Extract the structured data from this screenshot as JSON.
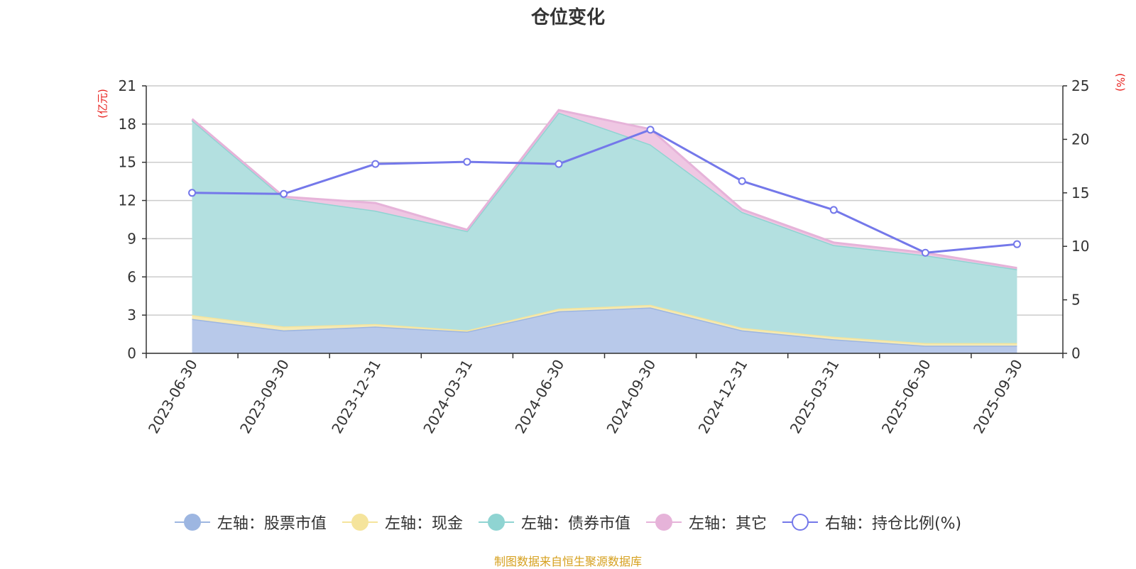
{
  "title": "仓位变化",
  "source": "制图数据来自恒生聚源数据库",
  "y_left_title": "(亿元)",
  "y_right_title": "(%)",
  "chart_data": {
    "type": "area",
    "categories": [
      "2023-06-30",
      "2023-09-30",
      "2023-12-31",
      "2024-03-31",
      "2024-06-30",
      "2024-09-30",
      "2024-12-31",
      "2025-03-31",
      "2025-06-30",
      "2025-09-30"
    ],
    "y_left": {
      "min": 0,
      "max": 21,
      "ticks": [
        0,
        3,
        6,
        9,
        12,
        15,
        18,
        21
      ]
    },
    "y_right": {
      "min": 0,
      "max": 25,
      "ticks": [
        0,
        5,
        10,
        15,
        20,
        25
      ]
    },
    "series": [
      {
        "name": "左轴：股票市值",
        "axis": "left",
        "stack": true,
        "color": "#9db6e1",
        "fill": "#b8c9ea",
        "values": [
          2.7,
          1.8,
          2.1,
          1.7,
          3.3,
          3.6,
          1.8,
          1.1,
          0.6,
          0.6
        ]
      },
      {
        "name": "左轴：现金",
        "axis": "left",
        "stack": true,
        "color": "#f5e49c",
        "fill": "#f5eab4",
        "values": [
          0.3,
          0.3,
          0.2,
          0.1,
          0.2,
          0.2,
          0.2,
          0.2,
          0.2,
          0.2
        ]
      },
      {
        "name": "左轴：债券市值",
        "axis": "left",
        "stack": true,
        "color": "#8fd4d2",
        "fill": "#b3e0e0",
        "values": [
          15.3,
          10.1,
          8.9,
          7.8,
          15.4,
          12.6,
          9.1,
          7.2,
          6.9,
          5.8
        ]
      },
      {
        "name": "左轴：其它",
        "axis": "left",
        "stack": true,
        "color": "#e6b3d9",
        "fill": "#efc7e3",
        "values": [
          0.1,
          0.1,
          0.6,
          0.1,
          0.2,
          1.2,
          0.2,
          0.2,
          0.2,
          0.1
        ]
      },
      {
        "name": "右轴：持仓比例(%)",
        "axis": "right",
        "stack": false,
        "color": "#7478ea",
        "values": [
          15.0,
          14.9,
          17.7,
          17.9,
          17.7,
          20.9,
          16.1,
          13.4,
          9.4,
          10.2
        ]
      }
    ]
  }
}
